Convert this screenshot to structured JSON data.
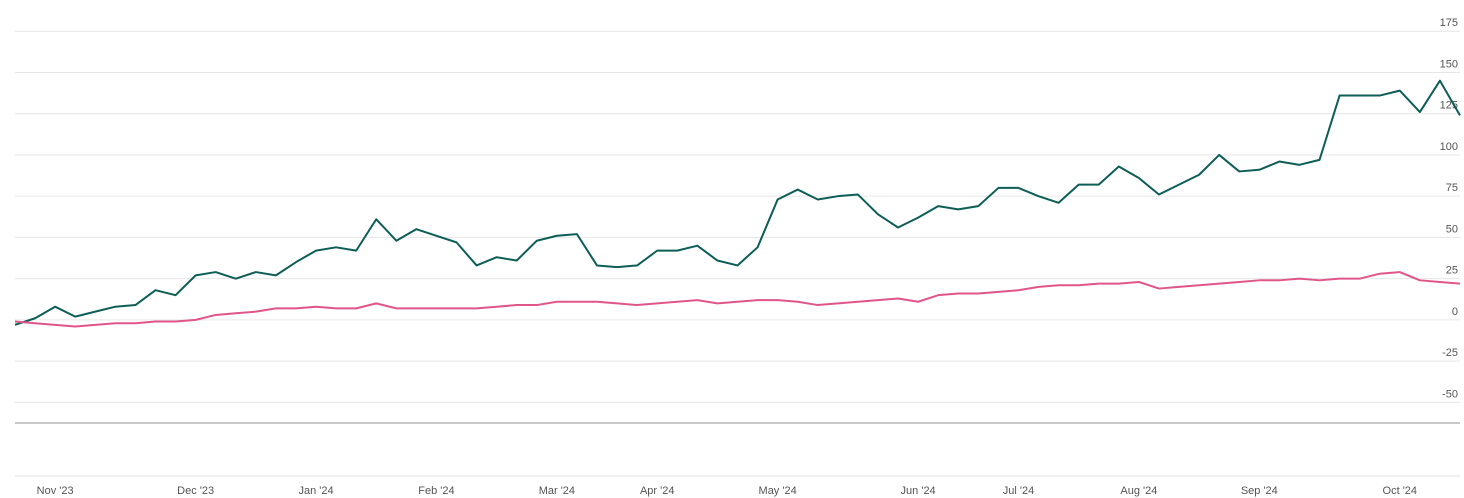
{
  "chart_data": {
    "type": "line",
    "categories": [
      null,
      null,
      "Nov '23",
      null,
      null,
      null,
      null,
      null,
      null,
      "Dec '23",
      null,
      null,
      null,
      null,
      null,
      "Jan '24",
      null,
      null,
      null,
      null,
      null,
      "Feb '24",
      null,
      null,
      null,
      null,
      null,
      "Mar '24",
      null,
      null,
      null,
      null,
      "Apr '24",
      null,
      null,
      null,
      null,
      null,
      "May '24",
      null,
      null,
      null,
      null,
      null,
      null,
      "Jun '24",
      null,
      null,
      null,
      null,
      "Jul '24",
      null,
      null,
      null,
      null,
      null,
      "Aug '24",
      null,
      null,
      null,
      null,
      null,
      "Sep '24",
      null,
      null,
      null,
      null,
      null,
      null,
      "Oct '24",
      null,
      null,
      null
    ],
    "series": [
      {
        "color": "#0d5e57",
        "values": [
          -3,
          1,
          8,
          2,
          5,
          8,
          9,
          18,
          15,
          27,
          29,
          25,
          29,
          27,
          35,
          42,
          44,
          42,
          61,
          48,
          55,
          51,
          47,
          33,
          38,
          36,
          48,
          51,
          52,
          33,
          32,
          33,
          42,
          42,
          45,
          36,
          33,
          44,
          73,
          79,
          73,
          75,
          76,
          64,
          56,
          62,
          69,
          67,
          69,
          80,
          80,
          75,
          71,
          82,
          82,
          93,
          86,
          76,
          82,
          88,
          100,
          90,
          91,
          96,
          94,
          97,
          136,
          136,
          136,
          139,
          126,
          145,
          124
        ]
      },
      {
        "color": "#e0558a",
        "values": [
          -1,
          -2,
          -3,
          -4,
          -3,
          -2,
          -2,
          -1,
          -1,
          0,
          3,
          4,
          5,
          7,
          7,
          8,
          7,
          7,
          10,
          7,
          7,
          7,
          7,
          7,
          8,
          9,
          9,
          11,
          11,
          11,
          10,
          9,
          10,
          11,
          12,
          10,
          11,
          12,
          12,
          11,
          9,
          10,
          11,
          12,
          13,
          11,
          15,
          16,
          16,
          17,
          18,
          20,
          21,
          21,
          22,
          22,
          23,
          19,
          20,
          21,
          22,
          23,
          24,
          24,
          25,
          24,
          25,
          25,
          28,
          29,
          24,
          23,
          22
        ]
      }
    ],
    "ylim": [
      -62.5,
      187.5
    ],
    "yticks": [
      -50,
      -25,
      0,
      25,
      50,
      75,
      100,
      125,
      150,
      175
    ],
    "grid": true
  }
}
